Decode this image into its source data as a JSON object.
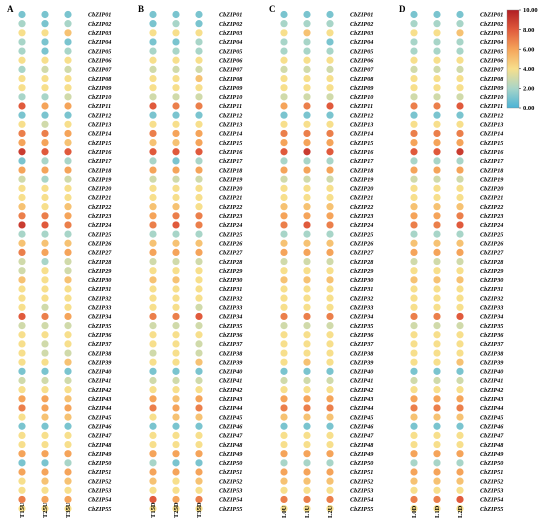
{
  "chart_data": {
    "type": "heatmap",
    "value_range": [
      0,
      10
    ],
    "colorbar": {
      "ticks": [
        "10.00",
        "8.00",
        "6.00",
        "4.00",
        "2.00",
        "0.00"
      ],
      "colors": [
        "#4bb3d6",
        "#a8d5c8",
        "#f7df8c",
        "#f5a45a",
        "#e05a3c",
        "#b11e23"
      ],
      "placement": "right"
    },
    "genes": [
      "CbZIP01",
      "CbZIP02",
      "CbZIP03",
      "CbZIP04",
      "CbZIP05",
      "CbZIP06",
      "CbZIP07",
      "CbZIP08",
      "CbZIP09",
      "CbZIP10",
      "CbZIP11",
      "CbZIP12",
      "CbZIP13",
      "CbZIP14",
      "CbZIP15",
      "CbZIP16",
      "CbZIP17",
      "CbZIP18",
      "CbZIP19",
      "CbZIP20",
      "CbZIP21",
      "CbZIP22",
      "CbZIP23",
      "CbZIP24",
      "CbZIP25",
      "CbZIP26",
      "CbZIP27",
      "CbZIP28",
      "CbZIP29",
      "CbZIP30",
      "CbZIP31",
      "CbZIP32",
      "CbZIP33",
      "CbZIP34",
      "CbZIP35",
      "CbZIP36",
      "CbZIP37",
      "CbZIP38",
      "CbZIP39",
      "CbZIP40",
      "CbZIP41",
      "CbZIP42",
      "CbZIP43",
      "CbZIP44",
      "CbZIP45",
      "CbZIP46",
      "CbZIP47",
      "CbZIP48",
      "CbZIP49",
      "CbZIP50",
      "CbZIP51",
      "CbZIP52",
      "CbZIP53",
      "CbZIP54",
      "CbZIP55"
    ],
    "panels": [
      {
        "letter": "A",
        "columns": [
          "T15U",
          "T25U",
          "T35U"
        ],
        "values": [
          [
            1,
            1,
            1
          ],
          [
            2,
            1,
            2
          ],
          [
            4,
            4,
            5
          ],
          [
            2,
            1,
            1
          ],
          [
            2,
            1,
            2
          ],
          [
            4,
            4,
            4
          ],
          [
            2,
            3,
            3
          ],
          [
            4,
            4,
            4
          ],
          [
            4,
            4,
            4
          ],
          [
            2,
            2,
            3
          ],
          [
            8,
            6,
            6
          ],
          [
            1,
            1,
            1
          ],
          [
            4,
            3,
            4
          ],
          [
            7,
            7,
            6
          ],
          [
            6,
            6,
            5
          ],
          [
            9,
            8,
            8
          ],
          [
            1,
            2,
            2
          ],
          [
            6,
            6,
            6
          ],
          [
            3,
            2,
            3
          ],
          [
            4,
            4,
            4
          ],
          [
            4,
            4,
            4
          ],
          [
            5,
            4,
            5
          ],
          [
            7,
            7,
            6
          ],
          [
            9,
            8,
            7
          ],
          [
            2,
            2,
            2
          ],
          [
            5,
            5,
            5
          ],
          [
            7,
            6,
            6
          ],
          [
            3,
            2,
            3
          ],
          [
            3,
            4,
            3
          ],
          [
            5,
            4,
            5
          ],
          [
            4,
            4,
            4
          ],
          [
            4,
            4,
            4
          ],
          [
            4,
            3,
            4
          ],
          [
            8,
            7,
            6
          ],
          [
            3,
            3,
            3
          ],
          [
            4,
            4,
            4
          ],
          [
            4,
            3,
            4
          ],
          [
            4,
            3,
            3
          ],
          [
            4,
            4,
            5
          ],
          [
            1,
            1,
            1
          ],
          [
            3,
            3,
            3
          ],
          [
            4,
            4,
            4
          ],
          [
            6,
            6,
            5
          ],
          [
            7,
            6,
            6
          ],
          [
            4,
            5,
            5
          ],
          [
            1,
            1,
            1
          ],
          [
            4,
            4,
            4
          ],
          [
            4,
            4,
            4
          ],
          [
            6,
            6,
            6
          ],
          [
            1,
            1,
            2
          ],
          [
            6,
            6,
            6
          ],
          [
            4,
            5,
            5
          ],
          [
            4,
            4,
            4
          ],
          [
            7,
            6,
            6
          ],
          [
            4,
            4,
            4
          ]
        ]
      },
      {
        "letter": "B",
        "columns": [
          "T15D",
          "T25D",
          "T35D"
        ],
        "values": [
          [
            1,
            1,
            1
          ],
          [
            1,
            2,
            1
          ],
          [
            4,
            4,
            4
          ],
          [
            1,
            1,
            2
          ],
          [
            2,
            2,
            2
          ],
          [
            4,
            4,
            4
          ],
          [
            3,
            3,
            3
          ],
          [
            4,
            4,
            5
          ],
          [
            4,
            4,
            4
          ],
          [
            3,
            3,
            3
          ],
          [
            8,
            7,
            7
          ],
          [
            1,
            1,
            1
          ],
          [
            4,
            4,
            4
          ],
          [
            7,
            6,
            6
          ],
          [
            5,
            5,
            6
          ],
          [
            8,
            8,
            8
          ],
          [
            2,
            1,
            2
          ],
          [
            6,
            6,
            6
          ],
          [
            3,
            3,
            3
          ],
          [
            4,
            4,
            4
          ],
          [
            4,
            4,
            4
          ],
          [
            5,
            5,
            4
          ],
          [
            6,
            7,
            7
          ],
          [
            7,
            8,
            7
          ],
          [
            2,
            2,
            2
          ],
          [
            5,
            5,
            5
          ],
          [
            6,
            6,
            6
          ],
          [
            3,
            3,
            3
          ],
          [
            4,
            4,
            4
          ],
          [
            5,
            5,
            4
          ],
          [
            4,
            4,
            4
          ],
          [
            4,
            4,
            4
          ],
          [
            4,
            4,
            3
          ],
          [
            7,
            7,
            8
          ],
          [
            3,
            3,
            3
          ],
          [
            4,
            4,
            4
          ],
          [
            4,
            4,
            3
          ],
          [
            3,
            4,
            3
          ],
          [
            4,
            4,
            5
          ],
          [
            1,
            1,
            1
          ],
          [
            3,
            3,
            3
          ],
          [
            4,
            4,
            4
          ],
          [
            6,
            5,
            6
          ],
          [
            7,
            6,
            7
          ],
          [
            4,
            5,
            5
          ],
          [
            1,
            1,
            1
          ],
          [
            4,
            4,
            4
          ],
          [
            4,
            4,
            4
          ],
          [
            6,
            6,
            6
          ],
          [
            2,
            1,
            1
          ],
          [
            6,
            6,
            6
          ],
          [
            5,
            4,
            5
          ],
          [
            4,
            4,
            4
          ],
          [
            8,
            6,
            7
          ],
          [
            4,
            4,
            4
          ]
        ]
      },
      {
        "letter": "C",
        "columns": [
          "L0U",
          "L1U",
          "L2U"
        ],
        "values": [
          [
            1,
            1,
            1
          ],
          [
            2,
            2,
            2
          ],
          [
            4,
            5,
            4
          ],
          [
            2,
            2,
            1
          ],
          [
            2,
            2,
            2
          ],
          [
            4,
            4,
            4
          ],
          [
            3,
            3,
            3
          ],
          [
            4,
            4,
            4
          ],
          [
            4,
            4,
            4
          ],
          [
            3,
            3,
            3
          ],
          [
            6,
            7,
            8
          ],
          [
            1,
            1,
            1
          ],
          [
            4,
            4,
            4
          ],
          [
            7,
            7,
            7
          ],
          [
            6,
            6,
            6
          ],
          [
            8,
            9,
            8
          ],
          [
            2,
            2,
            2
          ],
          [
            6,
            6,
            6
          ],
          [
            3,
            3,
            3
          ],
          [
            4,
            4,
            4
          ],
          [
            4,
            4,
            4
          ],
          [
            5,
            5,
            5
          ],
          [
            6,
            6,
            6
          ],
          [
            7,
            8,
            7
          ],
          [
            2,
            2,
            2
          ],
          [
            5,
            5,
            5
          ],
          [
            6,
            6,
            6
          ],
          [
            3,
            3,
            3
          ],
          [
            4,
            4,
            4
          ],
          [
            5,
            5,
            5
          ],
          [
            4,
            4,
            4
          ],
          [
            4,
            4,
            4
          ],
          [
            4,
            4,
            4
          ],
          [
            7,
            7,
            7
          ],
          [
            3,
            3,
            3
          ],
          [
            4,
            4,
            4
          ],
          [
            4,
            4,
            4
          ],
          [
            4,
            4,
            4
          ],
          [
            4,
            5,
            4
          ],
          [
            1,
            1,
            1
          ],
          [
            3,
            3,
            3
          ],
          [
            4,
            4,
            4
          ],
          [
            6,
            6,
            6
          ],
          [
            7,
            7,
            7
          ],
          [
            5,
            5,
            5
          ],
          [
            1,
            1,
            1
          ],
          [
            4,
            4,
            4
          ],
          [
            4,
            4,
            4
          ],
          [
            6,
            6,
            6
          ],
          [
            2,
            2,
            2
          ],
          [
            6,
            6,
            6
          ],
          [
            5,
            5,
            5
          ],
          [
            4,
            4,
            4
          ],
          [
            7,
            7,
            7
          ],
          [
            4,
            4,
            4
          ]
        ]
      },
      {
        "letter": "D",
        "columns": [
          "L0D",
          "L1D",
          "L2D"
        ],
        "values": [
          [
            1,
            1,
            1
          ],
          [
            2,
            2,
            2
          ],
          [
            4,
            4,
            5
          ],
          [
            2,
            2,
            2
          ],
          [
            2,
            2,
            2
          ],
          [
            4,
            4,
            4
          ],
          [
            3,
            3,
            3
          ],
          [
            4,
            4,
            4
          ],
          [
            4,
            4,
            4
          ],
          [
            3,
            3,
            3
          ],
          [
            7,
            7,
            8
          ],
          [
            1,
            1,
            1
          ],
          [
            4,
            4,
            4
          ],
          [
            7,
            7,
            7
          ],
          [
            6,
            6,
            6
          ],
          [
            8,
            8,
            9
          ],
          [
            2,
            2,
            2
          ],
          [
            6,
            6,
            6
          ],
          [
            3,
            3,
            3
          ],
          [
            4,
            4,
            4
          ],
          [
            4,
            4,
            4
          ],
          [
            5,
            5,
            5
          ],
          [
            6,
            6,
            7
          ],
          [
            7,
            7,
            8
          ],
          [
            2,
            2,
            2
          ],
          [
            5,
            5,
            5
          ],
          [
            6,
            6,
            6
          ],
          [
            3,
            3,
            3
          ],
          [
            4,
            4,
            4
          ],
          [
            5,
            5,
            5
          ],
          [
            4,
            4,
            4
          ],
          [
            4,
            4,
            4
          ],
          [
            4,
            4,
            4
          ],
          [
            7,
            7,
            8
          ],
          [
            3,
            3,
            3
          ],
          [
            4,
            4,
            4
          ],
          [
            4,
            4,
            4
          ],
          [
            4,
            4,
            4
          ],
          [
            4,
            4,
            5
          ],
          [
            1,
            1,
            1
          ],
          [
            3,
            3,
            3
          ],
          [
            4,
            4,
            4
          ],
          [
            6,
            6,
            6
          ],
          [
            7,
            7,
            7
          ],
          [
            5,
            5,
            5
          ],
          [
            1,
            1,
            1
          ],
          [
            4,
            4,
            4
          ],
          [
            4,
            4,
            4
          ],
          [
            6,
            6,
            6
          ],
          [
            2,
            2,
            2
          ],
          [
            6,
            6,
            6
          ],
          [
            5,
            5,
            5
          ],
          [
            4,
            4,
            4
          ],
          [
            7,
            7,
            8
          ],
          [
            4,
            4,
            4
          ]
        ]
      }
    ]
  }
}
